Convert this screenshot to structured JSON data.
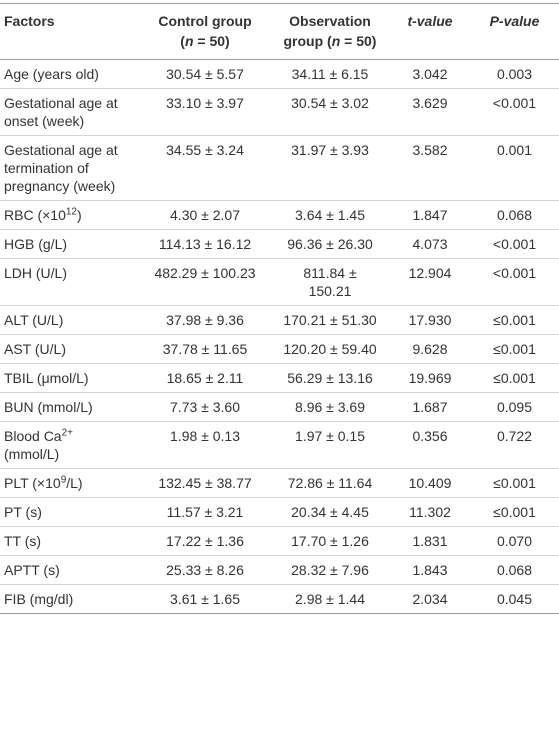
{
  "table": {
    "header": [
      "Factors",
      [
        {
          "text": "Control group ("
        },
        {
          "text": "n",
          "style": "italic"
        },
        {
          "text": " = 50)"
        }
      ],
      [
        {
          "text": "Observation group ("
        },
        {
          "text": "n",
          "style": "italic"
        },
        {
          "text": " = 50)"
        }
      ],
      [
        {
          "text": "t-value",
          "style": "italic"
        }
      ],
      [
        {
          "text": "P-value",
          "style": "italic"
        }
      ]
    ],
    "rows": [
      [
        "Age (years old)",
        "30.54 ± 5.57",
        "34.11 ± 6.15",
        "3.042",
        "0.003"
      ],
      [
        "Gestational age at onset (week)",
        "33.10 ± 3.97",
        "30.54 ± 3.02",
        "3.629",
        "<0.001"
      ],
      [
        "Gestational age at termination of pregnancy (week)",
        "34.55 ± 3.24",
        "31.97 ± 3.93",
        "3.582",
        "0.001"
      ],
      [
        [
          {
            "text": "RBC (×10"
          },
          {
            "text": "12",
            "style": "sup"
          },
          {
            "text": ")"
          }
        ],
        "4.30 ± 2.07",
        "3.64 ± 1.45",
        "1.847",
        "0.068"
      ],
      [
        "HGB (g/L)",
        "114.13 ± 16.12",
        "96.36 ± 26.30",
        "4.073",
        "<0.001"
      ],
      [
        "LDH (U/L)",
        "482.29 ± 100.23",
        "811.84 ± 150.21",
        "12.904",
        "<0.001"
      ],
      [
        "ALT (U/L)",
        "37.98 ± 9.36",
        "170.21 ± 51.30",
        "17.930",
        "≤0.001"
      ],
      [
        "AST (U/L)",
        "37.78 ± 11.65",
        "120.20 ± 59.40",
        "9.628",
        "≤0.001"
      ],
      [
        "TBIL (μmol/L)",
        "18.65 ± 2.11",
        "56.29 ± 13.16",
        "19.969",
        "≤0.001"
      ],
      [
        "BUN (mmol/L)",
        "7.73 ± 3.60",
        "8.96 ± 3.69",
        "1.687",
        "0.095"
      ],
      [
        [
          {
            "text": "Blood Ca"
          },
          {
            "text": "2+",
            "style": "sup"
          },
          {
            "text": " (mmol/L)"
          }
        ],
        "1.98 ± 0.13",
        "1.97 ± 0.15",
        "0.356",
        "0.722"
      ],
      [
        [
          {
            "text": "PLT (×10"
          },
          {
            "text": "9",
            "style": "sup"
          },
          {
            "text": "/L)"
          }
        ],
        "132.45 ± 38.77",
        "72.86 ± 11.64",
        "10.409",
        "≤0.001"
      ],
      [
        "PT (s)",
        "11.57 ± 3.21",
        "20.34 ± 4.45",
        "11.302",
        "≤0.001"
      ],
      [
        "TT (s)",
        "17.22 ± 1.36",
        "17.70 ± 1.26",
        "1.831",
        "0.070"
      ],
      [
        "APTT (s)",
        "25.33 ± 8.26",
        "28.32 ± 7.96",
        "1.843",
        "0.068"
      ],
      [
        "FIB (mg/dl)",
        "3.61 ± 1.65",
        "2.98 ± 1.44",
        "2.034",
        "0.045"
      ]
    ]
  }
}
